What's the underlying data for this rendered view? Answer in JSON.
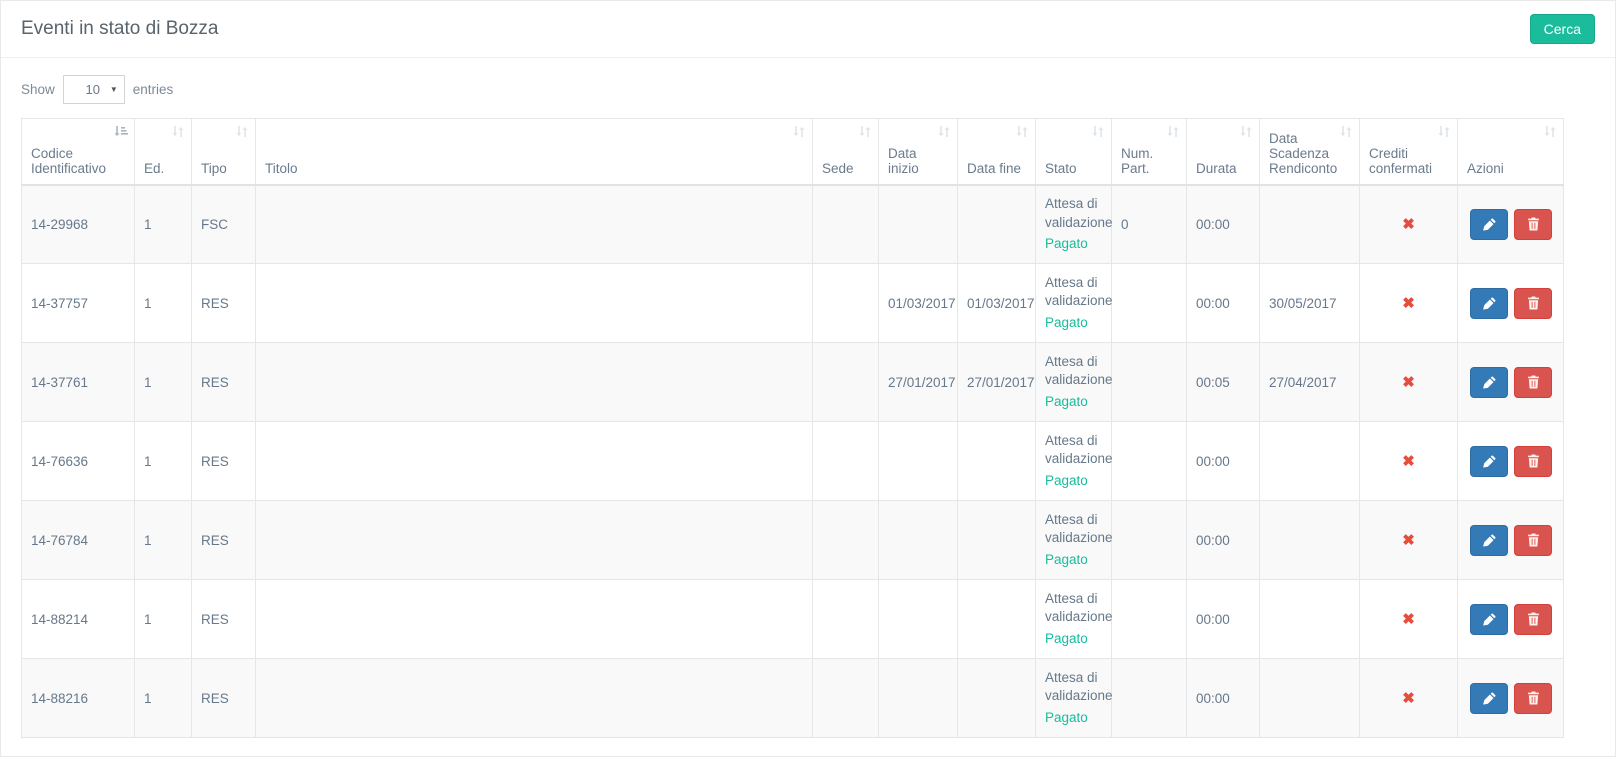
{
  "panel": {
    "title": "Eventi in stato di Bozza",
    "search_button_label": "Cerca"
  },
  "length_control": {
    "show_label": "Show",
    "selected_value": "10",
    "entries_label": "entries"
  },
  "table": {
    "columns": [
      {
        "label": "Codice Identificativo",
        "sorted": "asc"
      },
      {
        "label": "Ed."
      },
      {
        "label": "Tipo"
      },
      {
        "label": "Titolo"
      },
      {
        "label": "Sede"
      },
      {
        "label": "Data inizio"
      },
      {
        "label": "Data fine"
      },
      {
        "label": "Stato"
      },
      {
        "label": "Num. Part."
      },
      {
        "label": "Durata"
      },
      {
        "label": "Data Scadenza Rendiconto"
      },
      {
        "label": "Crediti confermati"
      },
      {
        "label": "Azioni"
      }
    ],
    "rows": [
      {
        "codice": "14-29968",
        "ed": "1",
        "tipo": "FSC",
        "titolo": "",
        "sede": "",
        "data_inizio": "",
        "data_fine": "",
        "stato": "Attesa di validazione",
        "stato_pagamento": "Pagato",
        "num_part": "0",
        "durata": "00:00",
        "data_scadenza_rendiconto": "",
        "crediti_confermati": "✖"
      },
      {
        "codice": "14-37757",
        "ed": "1",
        "tipo": "RES",
        "titolo": "",
        "sede": "",
        "data_inizio": "01/03/2017",
        "data_fine": "01/03/2017",
        "stato": "Attesa di validazione",
        "stato_pagamento": "Pagato",
        "num_part": "",
        "durata": "00:00",
        "data_scadenza_rendiconto": "30/05/2017",
        "crediti_confermati": "✖"
      },
      {
        "codice": "14-37761",
        "ed": "1",
        "tipo": "RES",
        "titolo": "",
        "sede": "",
        "data_inizio": "27/01/2017",
        "data_fine": "27/01/2017",
        "stato": "Attesa di validazione",
        "stato_pagamento": "Pagato",
        "num_part": "",
        "durata": "00:05",
        "data_scadenza_rendiconto": "27/04/2017",
        "crediti_confermati": "✖"
      },
      {
        "codice": "14-76636",
        "ed": "1",
        "tipo": "RES",
        "titolo": "",
        "sede": "",
        "data_inizio": "",
        "data_fine": "",
        "stato": "Attesa di validazione",
        "stato_pagamento": "Pagato",
        "num_part": "",
        "durata": "00:00",
        "data_scadenza_rendiconto": "",
        "crediti_confermati": "✖"
      },
      {
        "codice": "14-76784",
        "ed": "1",
        "tipo": "RES",
        "titolo": "",
        "sede": "",
        "data_inizio": "",
        "data_fine": "",
        "stato": "Attesa di validazione",
        "stato_pagamento": "Pagato",
        "num_part": "",
        "durata": "00:00",
        "data_scadenza_rendiconto": "",
        "crediti_confermati": "✖"
      },
      {
        "codice": "14-88214",
        "ed": "1",
        "tipo": "RES",
        "titolo": "",
        "sede": "",
        "data_inizio": "",
        "data_fine": "",
        "stato": "Attesa di validazione",
        "stato_pagamento": "Pagato",
        "num_part": "",
        "durata": "00:00",
        "data_scadenza_rendiconto": "",
        "crediti_confermati": "✖"
      },
      {
        "codice": "14-88216",
        "ed": "1",
        "tipo": "RES",
        "titolo": "",
        "sede": "",
        "data_inizio": "",
        "data_fine": "",
        "stato": "Attesa di validazione",
        "stato_pagamento": "Pagato",
        "num_part": "",
        "durata": "00:00",
        "data_scadenza_rendiconto": "",
        "crediti_confermati": "✖"
      }
    ]
  },
  "icons": {
    "edit": "pencil-icon",
    "delete": "trash-icon",
    "crediti_not_confirmed": "x-icon",
    "sortable": "sort-updown-icon",
    "sorted_asc": "sort-amount-asc-icon",
    "select_caret": "caret-down-icon"
  },
  "colors": {
    "accent_green": "#1abc9c",
    "pagato_green": "#18bc9c",
    "primary_blue": "#337ab7",
    "danger_red": "#d9534f",
    "x_red": "#e74c3c",
    "stripe": "#f9f9f9",
    "border": "#e4e6e8"
  }
}
